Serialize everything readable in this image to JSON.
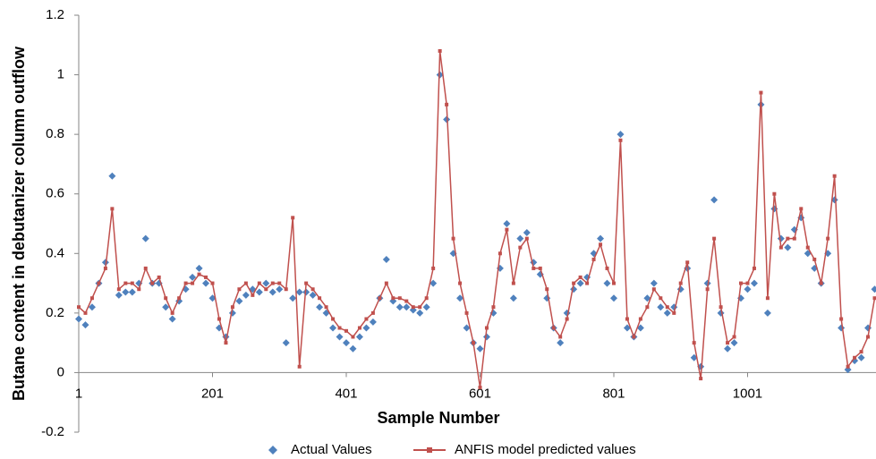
{
  "chart_data": {
    "type": "line",
    "xlabel": "Sample Number",
    "ylabel": "Butane content in debutanizer column outflow",
    "xlim": [
      1,
      1193
    ],
    "ylim": [
      -0.2,
      1.2
    ],
    "xticks": [
      1,
      201,
      401,
      601,
      801,
      1001
    ],
    "yticks": [
      -0.2,
      0,
      0.2,
      0.4,
      0.6,
      0.8,
      1,
      1.2
    ],
    "grid": false,
    "legend": "bottom",
    "x": [
      1,
      11,
      21,
      31,
      41,
      51,
      61,
      71,
      81,
      91,
      101,
      111,
      121,
      131,
      141,
      151,
      161,
      171,
      181,
      191,
      201,
      211,
      221,
      231,
      241,
      251,
      261,
      271,
      281,
      291,
      301,
      311,
      321,
      331,
      341,
      351,
      361,
      371,
      381,
      391,
      401,
      411,
      421,
      431,
      441,
      451,
      461,
      471,
      481,
      491,
      501,
      511,
      521,
      531,
      541,
      551,
      561,
      571,
      581,
      591,
      601,
      611,
      621,
      631,
      641,
      651,
      661,
      671,
      681,
      691,
      701,
      711,
      721,
      731,
      741,
      751,
      761,
      771,
      781,
      791,
      801,
      811,
      821,
      831,
      841,
      851,
      861,
      871,
      881,
      891,
      901,
      911,
      921,
      931,
      941,
      951,
      961,
      971,
      981,
      991,
      1001,
      1011,
      1021,
      1031,
      1041,
      1051,
      1061,
      1071,
      1081,
      1091,
      1101,
      1111,
      1121,
      1131,
      1141,
      1151,
      1161,
      1171,
      1181,
      1191
    ],
    "series": [
      {
        "name": "Actual Values",
        "type": "scatter",
        "color": "#4f81bd",
        "values": [
          0.18,
          0.16,
          0.22,
          0.3,
          0.37,
          0.66,
          0.26,
          0.27,
          0.27,
          0.3,
          0.45,
          0.3,
          0.3,
          0.22,
          0.18,
          0.24,
          0.28,
          0.32,
          0.35,
          0.3,
          0.25,
          0.15,
          0.12,
          0.2,
          0.24,
          0.26,
          0.28,
          0.27,
          0.3,
          0.27,
          0.28,
          0.1,
          0.25,
          0.27,
          0.27,
          0.26,
          0.22,
          0.2,
          0.15,
          0.12,
          0.1,
          0.08,
          0.12,
          0.15,
          0.17,
          0.25,
          0.38,
          0.24,
          0.22,
          0.22,
          0.21,
          0.2,
          0.22,
          0.3,
          1.0,
          0.85,
          0.4,
          0.25,
          0.15,
          0.1,
          0.08,
          0.12,
          0.2,
          0.35,
          0.5,
          0.25,
          0.45,
          0.47,
          0.37,
          0.33,
          0.25,
          0.15,
          0.1,
          0.2,
          0.28,
          0.3,
          0.32,
          0.4,
          0.45,
          0.3,
          0.25,
          0.8,
          0.15,
          0.12,
          0.15,
          0.25,
          0.3,
          0.22,
          0.2,
          0.22,
          0.28,
          0.35,
          0.05,
          0.02,
          0.3,
          0.58,
          0.2,
          0.08,
          0.1,
          0.25,
          0.28,
          0.3,
          0.9,
          0.2,
          0.55,
          0.45,
          0.42,
          0.48,
          0.52,
          0.4,
          0.35,
          0.3,
          0.4,
          0.58,
          0.15,
          0.01,
          0.04,
          0.05,
          0.15,
          0.28
        ]
      },
      {
        "name": "ANFIS model predicted values",
        "type": "line",
        "color": "#c0504d",
        "values": [
          0.22,
          0.2,
          0.25,
          0.3,
          0.35,
          0.55,
          0.28,
          0.3,
          0.3,
          0.28,
          0.35,
          0.3,
          0.32,
          0.25,
          0.2,
          0.25,
          0.3,
          0.3,
          0.33,
          0.32,
          0.3,
          0.18,
          0.1,
          0.22,
          0.28,
          0.3,
          0.26,
          0.3,
          0.28,
          0.3,
          0.3,
          0.28,
          0.52,
          0.02,
          0.3,
          0.28,
          0.25,
          0.22,
          0.18,
          0.15,
          0.14,
          0.12,
          0.15,
          0.18,
          0.2,
          0.25,
          0.3,
          0.25,
          0.25,
          0.24,
          0.22,
          0.22,
          0.25,
          0.35,
          1.08,
          0.9,
          0.45,
          0.3,
          0.2,
          0.1,
          -0.05,
          0.15,
          0.22,
          0.4,
          0.48,
          0.3,
          0.42,
          0.45,
          0.35,
          0.35,
          0.28,
          0.15,
          0.12,
          0.18,
          0.3,
          0.32,
          0.3,
          0.38,
          0.43,
          0.35,
          0.3,
          0.78,
          0.18,
          0.12,
          0.18,
          0.22,
          0.28,
          0.25,
          0.22,
          0.2,
          0.3,
          0.37,
          0.1,
          -0.02,
          0.28,
          0.45,
          0.22,
          0.1,
          0.12,
          0.3,
          0.3,
          0.35,
          0.94,
          0.25,
          0.6,
          0.42,
          0.45,
          0.45,
          0.55,
          0.42,
          0.38,
          0.3,
          0.45,
          0.66,
          0.18,
          0.02,
          0.05,
          0.07,
          0.12,
          0.25
        ]
      }
    ]
  }
}
